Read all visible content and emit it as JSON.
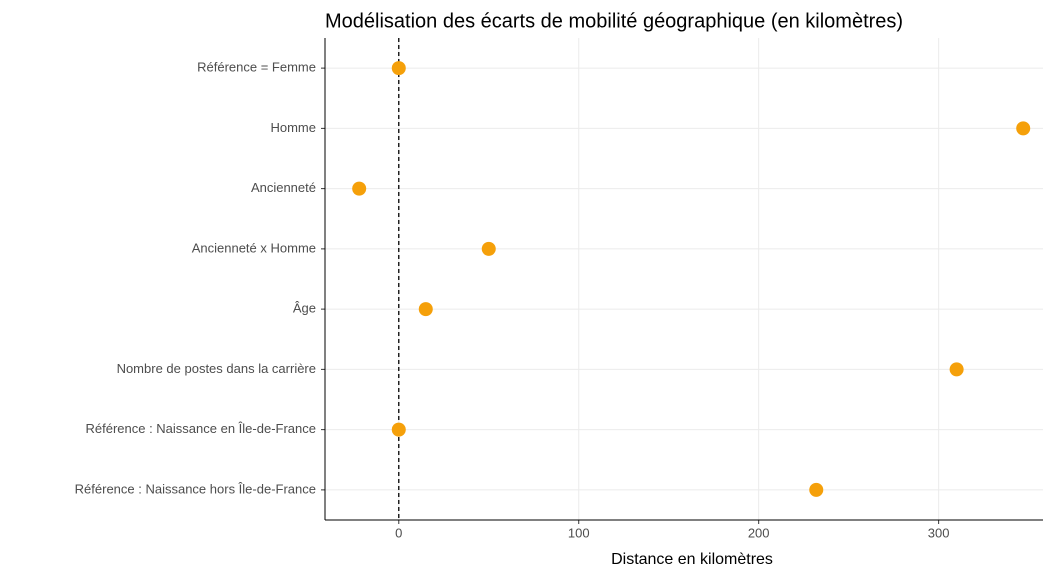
{
  "chart_data": {
    "type": "dot",
    "title": "Modélisation des écarts de  mobilité géographique (en kilomètres)",
    "x_label": "Distance en kilomètres",
    "categories": [
      "Référence = Femme",
      "Homme",
      "Ancienneté",
      "Ancienneté x Homme",
      "Âge",
      "Nombre de postes dans la carrière",
      "Référence : Naissance en Île-de-France",
      "Référence : Naissance hors Île-de-France"
    ],
    "values": [
      0,
      347,
      -22,
      50,
      15,
      310,
      0,
      232
    ],
    "color": "#f5a00a",
    "xlim": [
      -41,
      358
    ],
    "xticks": [
      0,
      100,
      200,
      300
    ],
    "reference_line": 0,
    "grid": true
  }
}
